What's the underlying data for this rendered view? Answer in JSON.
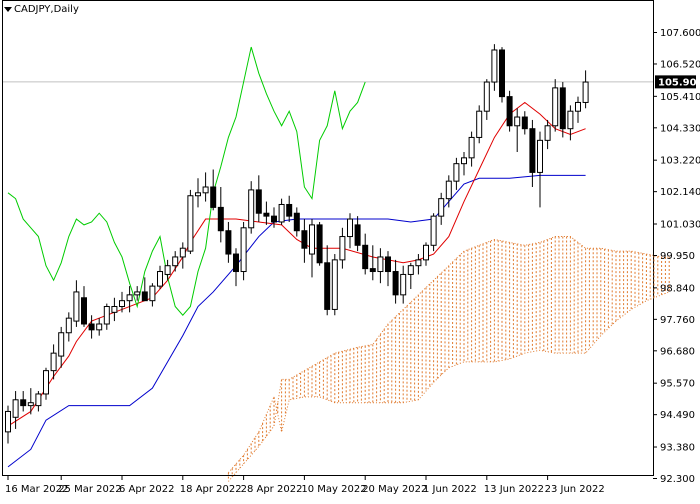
{
  "chart_data": {
    "type": "candlestick",
    "symbol_label": "CADJPY,Daily",
    "current_price_label": "105.906",
    "ylim": [
      92.3,
      108.2
    ],
    "y_ticks": [
      "107.600",
      "106.520",
      "105.410",
      "104.330",
      "103.220",
      "102.140",
      "101.030",
      "99.950",
      "98.840",
      "97.760",
      "96.680",
      "95.570",
      "94.490",
      "93.380",
      "92.300"
    ],
    "x_ticks": [
      {
        "label": "16 Mar 2022",
        "index": 0
      },
      {
        "label": "25 Mar 2022",
        "index": 7
      },
      {
        "label": "6 Apr 2022",
        "index": 15
      },
      {
        "label": "18 Apr 2022",
        "index": 23
      },
      {
        "label": "28 Apr 2022",
        "index": 31
      },
      {
        "label": "10 May 2022",
        "index": 39
      },
      {
        "label": "20 May 2022",
        "index": 47
      },
      {
        "label": "1 Jun 2022",
        "index": 55
      },
      {
        "label": "13 Jun 2022",
        "index": 63
      },
      {
        "label": "23 Jun 2022",
        "index": 71
      }
    ],
    "candles": [
      [
        93.9,
        94.8,
        93.5,
        94.6
      ],
      [
        94.4,
        95.3,
        94.0,
        95.0
      ],
      [
        95.0,
        95.3,
        94.6,
        94.8
      ],
      [
        94.8,
        95.4,
        94.5,
        94.9
      ],
      [
        94.8,
        95.3,
        94.6,
        95.2
      ],
      [
        95.2,
        96.1,
        95.0,
        96.0
      ],
      [
        96.0,
        96.9,
        95.7,
        96.6
      ],
      [
        96.5,
        97.5,
        96.1,
        97.3
      ],
      [
        97.3,
        98.0,
        97.0,
        97.8
      ],
      [
        97.7,
        99.1,
        97.5,
        98.7
      ],
      [
        98.5,
        98.9,
        97.5,
        97.6
      ],
      [
        97.6,
        97.9,
        97.1,
        97.4
      ],
      [
        97.4,
        97.8,
        97.2,
        97.6
      ],
      [
        97.6,
        98.3,
        97.4,
        98.2
      ],
      [
        98.0,
        98.5,
        97.7,
        98.2
      ],
      [
        98.2,
        98.7,
        98.0,
        98.4
      ],
      [
        98.4,
        98.9,
        98.0,
        98.6
      ],
      [
        98.6,
        98.9,
        98.4,
        98.7
      ],
      [
        98.7,
        99.2,
        98.5,
        98.4
      ],
      [
        98.4,
        99.0,
        98.2,
        98.9
      ],
      [
        98.9,
        99.6,
        98.8,
        99.4
      ],
      [
        99.3,
        99.8,
        99.1,
        99.6
      ],
      [
        99.6,
        100.1,
        99.4,
        99.9
      ],
      [
        99.9,
        100.4,
        99.5,
        100.2
      ],
      [
        100.1,
        102.2,
        100.0,
        102.0
      ],
      [
        102.0,
        102.6,
        101.6,
        102.1
      ],
      [
        102.1,
        102.8,
        101.8,
        102.3
      ],
      [
        102.3,
        102.9,
        101.5,
        101.6
      ],
      [
        101.6,
        102.3,
        100.4,
        100.8
      ],
      [
        100.8,
        101.1,
        99.7,
        100.0
      ],
      [
        100.0,
        100.2,
        98.9,
        99.4
      ],
      [
        99.4,
        101.1,
        99.1,
        100.9
      ],
      [
        100.9,
        102.5,
        100.7,
        102.2
      ],
      [
        102.2,
        102.7,
        101.1,
        101.4
      ],
      [
        101.4,
        101.8,
        101.0,
        101.3
      ],
      [
        101.3,
        101.6,
        100.9,
        101.1
      ],
      [
        101.1,
        101.9,
        101.0,
        101.7
      ],
      [
        101.7,
        102.0,
        101.1,
        101.3
      ],
      [
        101.4,
        101.6,
        100.6,
        100.8
      ],
      [
        100.8,
        101.2,
        99.7,
        100.2
      ],
      [
        100.0,
        101.2,
        99.2,
        101.0
      ],
      [
        101.0,
        101.1,
        99.6,
        99.7
      ],
      [
        99.7,
        100.3,
        97.9,
        98.1
      ],
      [
        98.1,
        100.0,
        97.9,
        99.8
      ],
      [
        99.8,
        100.9,
        99.5,
        100.6
      ],
      [
        100.6,
        101.4,
        100.2,
        101.2
      ],
      [
        101.0,
        101.3,
        100.1,
        100.3
      ],
      [
        100.3,
        100.7,
        99.3,
        99.5
      ],
      [
        99.5,
        100.3,
        99.1,
        99.4
      ],
      [
        99.4,
        100.2,
        99.0,
        99.9
      ],
      [
        99.9,
        100.1,
        98.9,
        99.4
      ],
      [
        99.4,
        99.8,
        98.3,
        98.6
      ],
      [
        98.6,
        99.6,
        98.3,
        99.3
      ],
      [
        99.3,
        99.7,
        98.8,
        99.6
      ],
      [
        99.6,
        100.0,
        99.3,
        99.8
      ],
      [
        99.8,
        100.4,
        99.6,
        100.3
      ],
      [
        100.3,
        101.4,
        100.1,
        101.3
      ],
      [
        101.3,
        102.1,
        101.0,
        101.9
      ],
      [
        101.9,
        102.7,
        101.6,
        102.5
      ],
      [
        102.5,
        103.3,
        102.2,
        103.1
      ],
      [
        103.1,
        103.5,
        102.7,
        103.3
      ],
      [
        103.3,
        104.2,
        103.0,
        104.0
      ],
      [
        104.0,
        105.1,
        103.8,
        104.9
      ],
      [
        104.9,
        106.0,
        104.6,
        105.9
      ],
      [
        105.9,
        107.2,
        105.6,
        107.0
      ],
      [
        107.0,
        107.1,
        105.2,
        105.4
      ],
      [
        105.4,
        105.6,
        104.2,
        104.4
      ],
      [
        104.4,
        105.0,
        103.5,
        104.7
      ],
      [
        104.7,
        104.9,
        104.1,
        104.3
      ],
      [
        104.3,
        104.6,
        102.3,
        102.8
      ],
      [
        102.8,
        104.2,
        101.6,
        103.9
      ],
      [
        103.9,
        104.6,
        103.6,
        104.4
      ],
      [
        104.4,
        106.0,
        104.2,
        105.7
      ],
      [
        105.7,
        105.9,
        104.0,
        104.3
      ],
      [
        104.3,
        105.1,
        103.9,
        104.9
      ],
      [
        104.9,
        105.4,
        104.5,
        105.2
      ],
      [
        105.2,
        106.3,
        105.0,
        105.9
      ]
    ],
    "tenkan": [
      [
        0,
        94.1
      ],
      [
        3,
        94.6
      ],
      [
        6,
        95.8
      ],
      [
        8,
        96.5
      ],
      [
        9,
        97.0
      ],
      [
        11,
        97.7
      ],
      [
        14,
        98.0
      ],
      [
        17,
        98.3
      ],
      [
        19,
        98.5
      ],
      [
        21,
        99.1
      ],
      [
        23,
        99.9
      ],
      [
        24,
        100.4
      ],
      [
        26,
        101.2
      ],
      [
        30,
        101.2
      ],
      [
        33,
        101.1
      ],
      [
        36,
        101.0
      ],
      [
        38,
        100.5
      ],
      [
        40,
        100.2
      ],
      [
        44,
        100.2
      ],
      [
        48,
        99.9
      ],
      [
        52,
        99.7
      ],
      [
        54,
        99.8
      ],
      [
        56,
        100.0
      ],
      [
        58,
        100.6
      ],
      [
        60,
        101.8
      ],
      [
        62,
        102.9
      ],
      [
        64,
        104.0
      ],
      [
        66,
        104.8
      ],
      [
        68,
        105.2
      ],
      [
        70,
        104.8
      ],
      [
        72,
        104.3
      ],
      [
        74,
        104.1
      ],
      [
        76,
        104.3
      ]
    ],
    "kijun": [
      [
        0,
        92.7
      ],
      [
        3,
        93.3
      ],
      [
        5,
        94.3
      ],
      [
        8,
        94.8
      ],
      [
        12,
        94.8
      ],
      [
        16,
        94.8
      ],
      [
        19,
        95.4
      ],
      [
        21,
        96.3
      ],
      [
        23,
        97.2
      ],
      [
        25,
        98.2
      ],
      [
        27,
        98.7
      ],
      [
        30,
        99.6
      ],
      [
        33,
        100.6
      ],
      [
        35,
        101.1
      ],
      [
        38,
        101.2
      ],
      [
        41,
        101.2
      ],
      [
        44,
        101.2
      ],
      [
        47,
        101.2
      ],
      [
        50,
        101.2
      ],
      [
        53,
        101.1
      ],
      [
        56,
        101.2
      ],
      [
        58,
        101.8
      ],
      [
        60,
        102.4
      ],
      [
        62,
        102.6
      ],
      [
        66,
        102.6
      ],
      [
        70,
        102.7
      ],
      [
        74,
        102.7
      ],
      [
        76,
        102.7
      ]
    ],
    "chikou": [
      [
        0,
        102.1
      ],
      [
        1,
        101.9
      ],
      [
        2,
        101.2
      ],
      [
        3,
        100.9
      ],
      [
        4,
        100.6
      ],
      [
        5,
        99.6
      ],
      [
        6,
        99.1
      ],
      [
        7,
        99.7
      ],
      [
        8,
        100.6
      ],
      [
        9,
        101.2
      ],
      [
        10,
        101.0
      ],
      [
        11,
        101.1
      ],
      [
        12,
        101.4
      ],
      [
        13,
        101.1
      ],
      [
        14,
        100.4
      ],
      [
        15,
        99.9
      ],
      [
        16,
        99.0
      ],
      [
        17,
        98.2
      ],
      [
        18,
        99.4
      ],
      [
        19,
        100.1
      ],
      [
        20,
        100.6
      ],
      [
        21,
        99.2
      ],
      [
        22,
        98.2
      ],
      [
        23,
        97.9
      ],
      [
        24,
        98.2
      ],
      [
        25,
        99.4
      ],
      [
        26,
        100.2
      ],
      [
        27,
        102.1
      ],
      [
        28,
        103.0
      ],
      [
        29,
        104.0
      ],
      [
        30,
        104.7
      ],
      [
        31,
        105.9
      ],
      [
        32,
        107.1
      ],
      [
        33,
        106.2
      ],
      [
        34,
        105.5
      ],
      [
        35,
        104.9
      ],
      [
        36,
        104.4
      ],
      [
        37,
        104.9
      ],
      [
        38,
        104.2
      ],
      [
        39,
        102.3
      ],
      [
        40,
        101.9
      ],
      [
        41,
        103.9
      ],
      [
        42,
        104.4
      ],
      [
        43,
        105.6
      ],
      [
        44,
        104.3
      ],
      [
        45,
        104.9
      ],
      [
        46,
        105.2
      ],
      [
        47,
        105.9
      ]
    ],
    "cloud": [
      {
        "i": 29,
        "a": 92.2,
        "b": 92.5
      },
      {
        "i": 31,
        "a": 92.8,
        "b": 93.1
      },
      {
        "i": 33,
        "a": 93.4,
        "b": 93.9
      },
      {
        "i": 35,
        "a": 94.1,
        "b": 95.1
      },
      {
        "i": 36,
        "a": 95.7,
        "b": 93.9
      },
      {
        "i": 37,
        "a": 95.7,
        "b": 95.0
      },
      {
        "i": 39,
        "a": 96.0,
        "b": 95.1
      },
      {
        "i": 41,
        "a": 96.3,
        "b": 95.1
      },
      {
        "i": 43,
        "a": 96.6,
        "b": 94.9
      },
      {
        "i": 46,
        "a": 96.8,
        "b": 94.9
      },
      {
        "i": 48,
        "a": 96.9,
        "b": 94.9
      },
      {
        "i": 50,
        "a": 97.6,
        "b": 94.9
      },
      {
        "i": 52,
        "a": 98.1,
        "b": 94.9
      },
      {
        "i": 54,
        "a": 98.6,
        "b": 95.0
      },
      {
        "i": 56,
        "a": 99.1,
        "b": 95.6
      },
      {
        "i": 58,
        "a": 99.6,
        "b": 96.1
      },
      {
        "i": 60,
        "a": 100.1,
        "b": 96.3
      },
      {
        "i": 62,
        "a": 100.3,
        "b": 96.3
      },
      {
        "i": 64,
        "a": 100.5,
        "b": 96.3
      },
      {
        "i": 66,
        "a": 100.4,
        "b": 96.4
      },
      {
        "i": 68,
        "a": 100.3,
        "b": 96.6
      },
      {
        "i": 70,
        "a": 100.4,
        "b": 96.7
      },
      {
        "i": 72,
        "a": 100.6,
        "b": 96.6
      },
      {
        "i": 74,
        "a": 100.6,
        "b": 96.6
      },
      {
        "i": 76,
        "a": 100.2,
        "b": 96.6
      },
      {
        "i": 78,
        "a": 100.2,
        "b": 97.2
      },
      {
        "i": 80,
        "a": 100.1,
        "b": 97.7
      },
      {
        "i": 82,
        "a": 100.1,
        "b": 98.1
      },
      {
        "i": 84,
        "a": 100.0,
        "b": 98.4
      },
      {
        "i": 86,
        "a": 99.9,
        "b": 98.6
      },
      {
        "i": 87,
        "a": 99.9,
        "b": 98.7
      }
    ],
    "colors": {
      "candle": "#000000",
      "tenkan": "#e00000",
      "kijun": "#0000cc",
      "chikou": "#00cc00",
      "cloud": "#e07a2e",
      "price_line": "#c0c0c0",
      "price_label_bg": "#000000",
      "price_label_fg": "#ffffff",
      "frame": "#000000",
      "background": "#ffffff"
    }
  }
}
